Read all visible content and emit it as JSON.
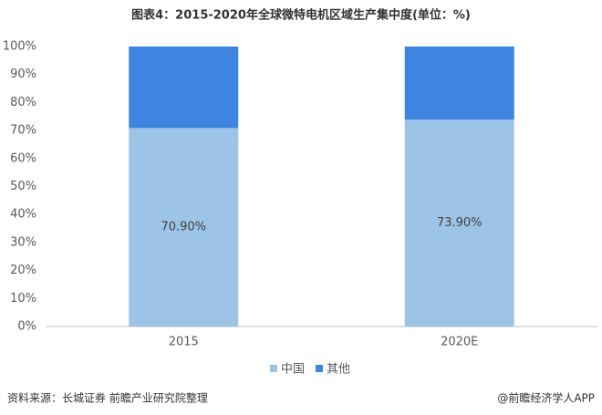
{
  "chart_data": {
    "type": "stacked_bar",
    "title": "图表4：2015-2020年全球微特电机区域生产集中度(单位：%)",
    "categories": [
      "2015",
      "2020E"
    ],
    "series": [
      {
        "name": "中国",
        "color": "#9dc3e6",
        "values": [
          70.9,
          73.9
        ],
        "value_labels": [
          "70.90%",
          "73.90%"
        ]
      },
      {
        "name": "其他",
        "color": "#3d85e0",
        "values": [
          29.1,
          26.1
        ]
      }
    ],
    "ylim": [
      0,
      100
    ],
    "yticks": [
      {
        "value": 0,
        "label": "0%"
      },
      {
        "value": 10,
        "label": "10%"
      },
      {
        "value": 20,
        "label": "20%"
      },
      {
        "value": 30,
        "label": "30%"
      },
      {
        "value": 40,
        "label": "40%"
      },
      {
        "value": 50,
        "label": "50%"
      },
      {
        "value": 60,
        "label": "60%"
      },
      {
        "value": 70,
        "label": "70%"
      },
      {
        "value": 80,
        "label": "80%"
      },
      {
        "value": 90,
        "label": "90%"
      },
      {
        "value": 100,
        "label": "100%"
      }
    ],
    "grid": false,
    "legend": "bottom",
    "source": "资料来源：长城证券 前瞻产业研究院整理",
    "credit": "@前瞻经济学人APP"
  }
}
